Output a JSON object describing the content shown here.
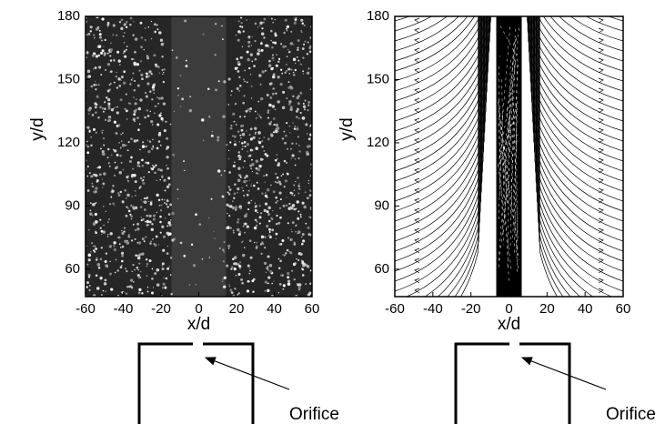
{
  "chart_data": [
    {
      "type": "image",
      "xlabel": "x/d",
      "ylabel": "y/d",
      "xlim": [
        -60,
        60
      ],
      "ylim": [
        47,
        180
      ],
      "xticks": [
        -60,
        -40,
        -20,
        0,
        20,
        40,
        60
      ],
      "yticks": [
        60,
        90,
        120,
        150,
        180
      ],
      "annotation": "Orifice"
    },
    {
      "type": "streamline",
      "xlabel": "x/d",
      "ylabel": "y/d",
      "xlim": [
        -60,
        60
      ],
      "ylim": [
        47,
        180
      ],
      "xticks": [
        -60,
        -40,
        -20,
        0,
        20,
        40,
        60
      ],
      "yticks": [
        60,
        90,
        120,
        150,
        180
      ],
      "annotation": "Orifice"
    }
  ]
}
